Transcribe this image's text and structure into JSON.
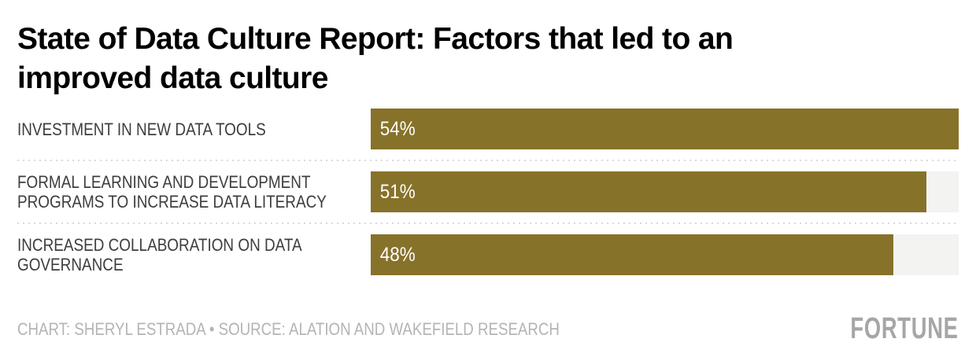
{
  "title": "State of Data Culture Report: Factors that led to an\nimproved data culture",
  "chart_data": {
    "type": "bar",
    "orientation": "horizontal",
    "title": "State of Data Culture Report: Factors that led to an improved data culture",
    "categories": [
      "INVESTMENT IN NEW DATA TOOLS",
      "FORMAL LEARNING AND DEVELOPMENT PROGRAMS TO INCREASE DATA LITERACY",
      "INCREASED COLLABORATION ON DATA GOVERNANCE"
    ],
    "categories_display": [
      "INVESTMENT IN NEW DATA TOOLS",
      "FORMAL LEARNING AND DEVELOPMENT\nPROGRAMS TO INCREASE DATA LITERACY",
      "INCREASED COLLABORATION ON DATA\nGOVERNANCE"
    ],
    "values": [
      54,
      51,
      48
    ],
    "value_labels": [
      "54%",
      "51%",
      "48%"
    ],
    "unit": "%",
    "xlim": [
      0,
      54
    ],
    "grid": false,
    "legend": false,
    "bar_scaling_note": "max value (54) fills full track width",
    "colors": {
      "bar": "#87722a",
      "track": "#f3f3f1",
      "label_text": "#3d3d3d",
      "value_text": "#ffffff",
      "divider": "#d9d9d9"
    }
  },
  "footer": {
    "credit": "CHART: SHERYL ESTRADA • SOURCE: ALATION AND WAKEFIELD RESEARCH",
    "logo": "FORTUNE"
  }
}
